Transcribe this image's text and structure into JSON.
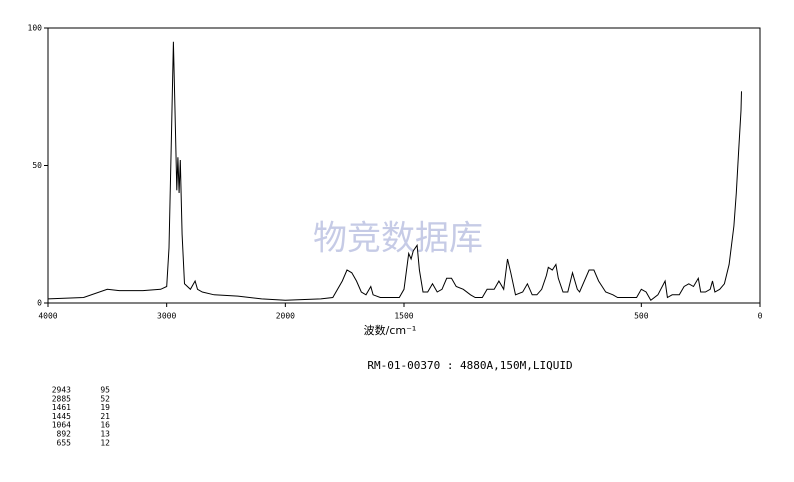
{
  "chart_data": {
    "type": "line",
    "watermark": "物竞数据库",
    "xlabel": "波数/cm⁻¹",
    "subtitle": "RM-01-00370 : 4880A,150M,LIQUID",
    "xlim": [
      4000,
      0
    ],
    "ylim": [
      0,
      100
    ],
    "xscale": {
      "break": 2000,
      "factor": 2
    },
    "xticks": [
      4000,
      3000,
      2000,
      1500,
      500,
      0
    ],
    "yticks": [
      0,
      50,
      100
    ],
    "color": "#000000",
    "x": [
      4000,
      3700,
      3500,
      3400,
      3200,
      3050,
      3000,
      2980,
      2960,
      2943,
      2930,
      2915,
      2905,
      2895,
      2885,
      2870,
      2850,
      2800,
      2760,
      2740,
      2700,
      2600,
      2400,
      2200,
      2000,
      1850,
      1800,
      1760,
      1740,
      1720,
      1700,
      1680,
      1660,
      1640,
      1630,
      1600,
      1560,
      1520,
      1500,
      1480,
      1470,
      1461,
      1445,
      1435,
      1420,
      1400,
      1380,
      1360,
      1340,
      1320,
      1300,
      1280,
      1250,
      1220,
      1200,
      1170,
      1150,
      1120,
      1100,
      1080,
      1064,
      1050,
      1030,
      1000,
      980,
      960,
      940,
      920,
      900,
      892,
      875,
      860,
      850,
      830,
      810,
      790,
      770,
      760,
      720,
      700,
      680,
      650,
      620,
      600,
      560,
      520,
      500,
      480,
      460,
      430,
      400,
      390,
      370,
      340,
      320,
      300,
      280,
      260,
      250,
      230,
      210,
      200,
      190,
      170,
      150,
      130,
      110,
      100,
      90,
      80,
      78
    ],
    "values": [
      1.5,
      2,
      5,
      4.5,
      4.5,
      5,
      6,
      20,
      60,
      95,
      70,
      41,
      53,
      40,
      52,
      25,
      7,
      5,
      8,
      5,
      4,
      3,
      2.5,
      1.5,
      1,
      1.5,
      2,
      8,
      12,
      11,
      8,
      4,
      3,
      6,
      3,
      2,
      2,
      2,
      5,
      18,
      16,
      19,
      21,
      12,
      4,
      4,
      7,
      4,
      5,
      9,
      9,
      6,
      5,
      3,
      2,
      2,
      5,
      5,
      8,
      5,
      16,
      11,
      3,
      4,
      7,
      3,
      3,
      5,
      10,
      13,
      12,
      14,
      9,
      4,
      4,
      11,
      5,
      4,
      12,
      12,
      8,
      4,
      3,
      2,
      2,
      2,
      5,
      4,
      1,
      3,
      8,
      2,
      3,
      3,
      6,
      7,
      6,
      9,
      4,
      4,
      5,
      8,
      4,
      5,
      7,
      14,
      28,
      40,
      55,
      70,
      77
    ],
    "peak_table": [
      [
        "2943",
        "95"
      ],
      [
        "2885",
        "52"
      ],
      [
        "1461",
        "19"
      ],
      [
        "1445",
        "21"
      ],
      [
        "1064",
        "16"
      ],
      [
        "892",
        "13"
      ],
      [
        "655",
        "12"
      ]
    ]
  }
}
